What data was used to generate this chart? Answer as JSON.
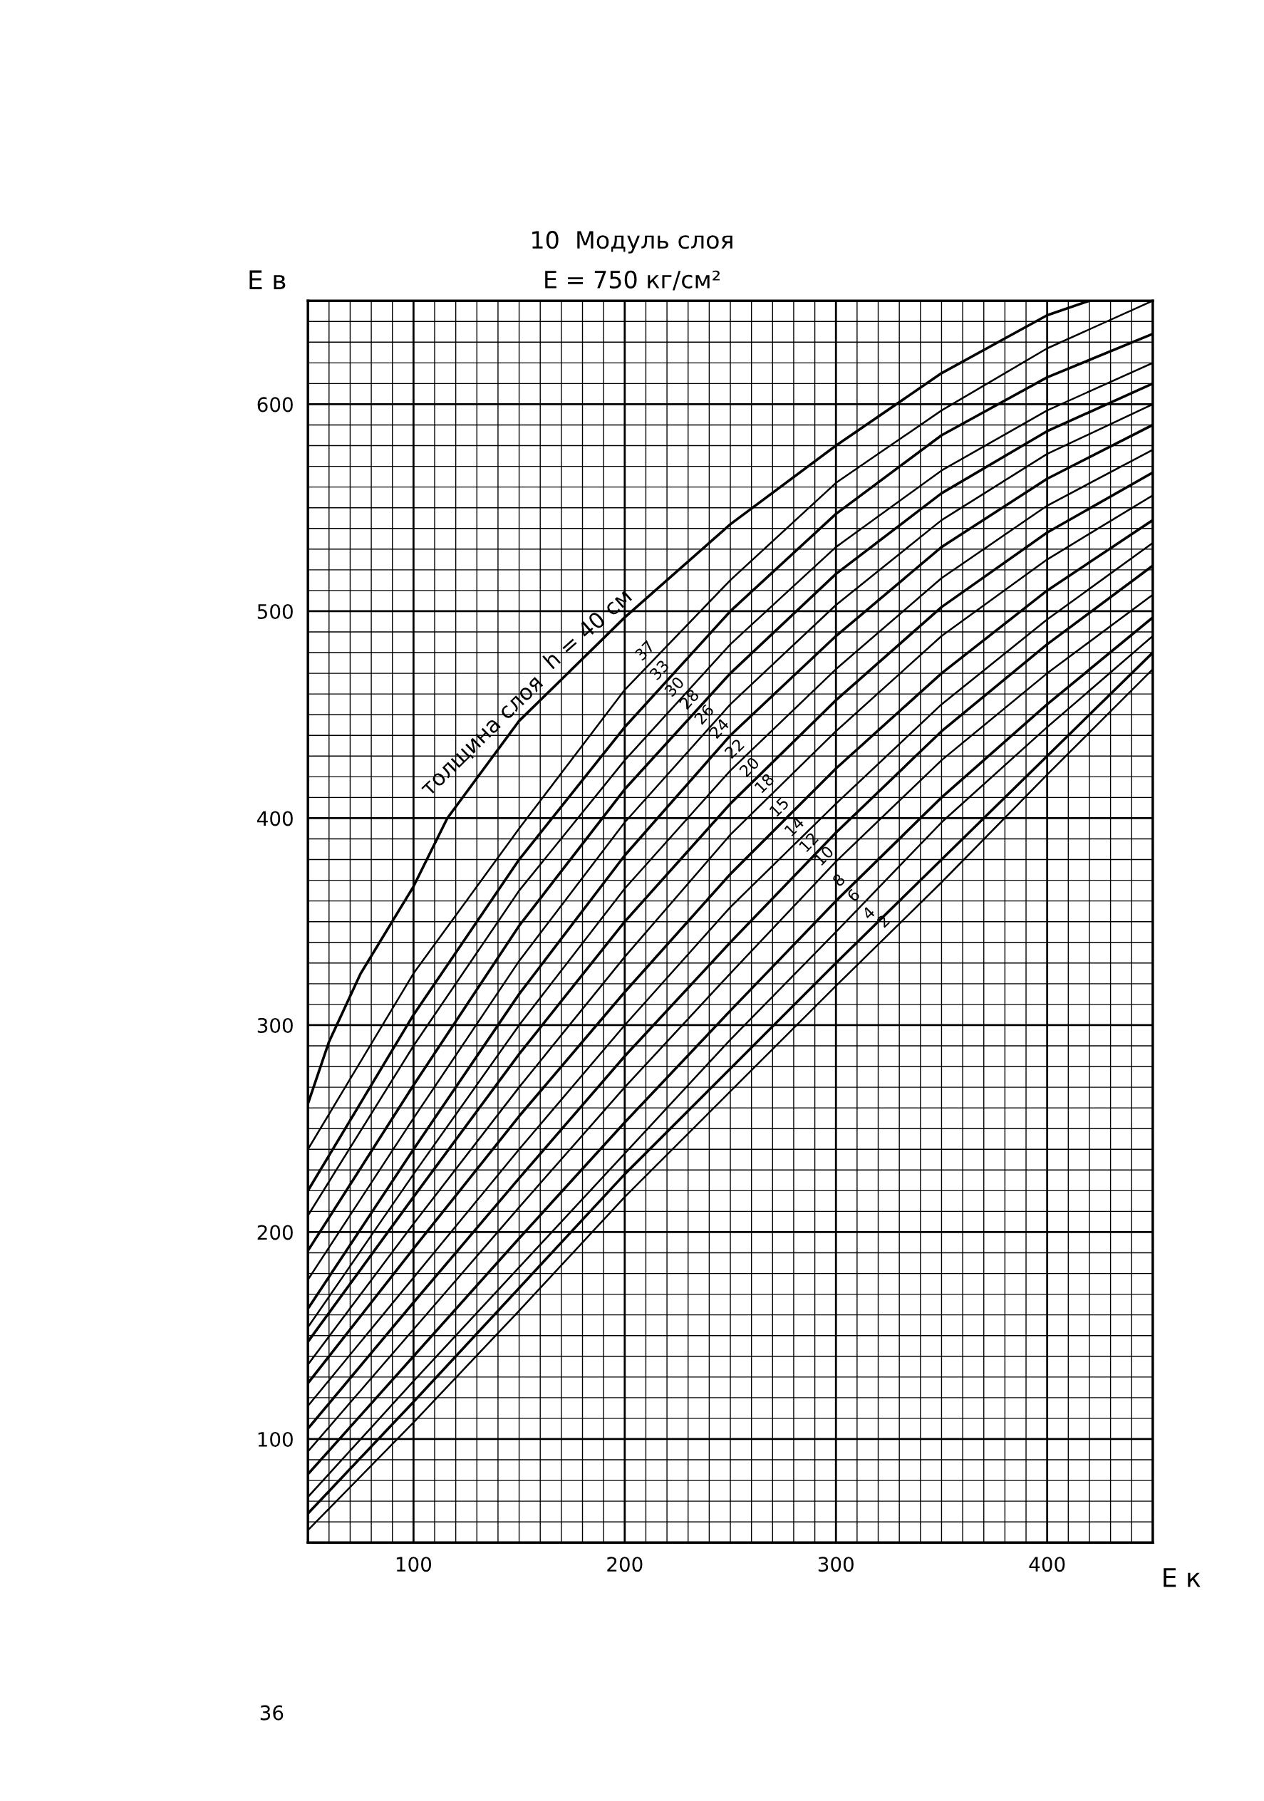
{
  "chart_data": {
    "type": "line",
    "title": "10  Модуль слоя",
    "subtitle": "E = 750 кг/см²",
    "xlabel": "E к",
    "ylabel": "E в",
    "x": [
      50,
      100,
      150,
      200,
      250,
      300,
      350,
      400,
      450
    ],
    "series": [
      {
        "name": "h = 40 см",
        "color": "#000000",
        "x": [
          50,
          60,
          75,
          100,
          116,
          150,
          200,
          250,
          300,
          350,
          400,
          420
        ],
        "values": [
          262,
          292,
          325,
          367,
          400,
          447,
          497,
          542,
          580,
          615,
          643,
          650
        ]
      },
      {
        "name": "37",
        "color": "#000000",
        "values": [
          240,
          325,
          395,
          462,
          515,
          562,
          597,
          627,
          650
        ]
      },
      {
        "name": "33",
        "color": "#000000",
        "values": [
          220,
          305,
          380,
          444,
          500,
          547,
          585,
          613,
          634
        ]
      },
      {
        "name": "30",
        "color": "#000000",
        "values": [
          208,
          290,
          365,
          428,
          484,
          531,
          568,
          597,
          620
        ]
      },
      {
        "name": "28",
        "color": "#000000",
        "values": [
          191,
          271,
          348,
          414,
          470,
          518,
          557,
          587,
          610
        ]
      },
      {
        "name": "26",
        "color": "#000000",
        "values": [
          177,
          255,
          331,
          398,
          455,
          503,
          544,
          576,
          600
        ]
      },
      {
        "name": "24",
        "color": "#000000",
        "values": [
          163,
          240,
          315,
          382,
          440,
          488,
          531,
          564,
          590
        ]
      },
      {
        "name": "22",
        "color": "#000000",
        "values": [
          154,
          228,
          300,
          366,
          423,
          472,
          516,
          551,
          578
        ]
      },
      {
        "name": "20",
        "color": "#000000",
        "values": [
          147,
          217,
          286,
          350,
          407,
          457,
          502,
          538,
          567
        ]
      },
      {
        "name": "18",
        "color": "#000000",
        "values": [
          136,
          204,
          270,
          333,
          392,
          442,
          488,
          525,
          556
        ]
      },
      {
        "name": "15",
        "color": "#000000",
        "values": [
          127,
          192,
          256,
          316,
          373,
          424,
          470,
          510,
          544
        ]
      },
      {
        "name": "14",
        "color": "#000000",
        "values": [
          116,
          178,
          240,
          300,
          357,
          407,
          455,
          496,
          533
        ]
      },
      {
        "name": "12",
        "color": "#000000",
        "values": [
          105,
          166,
          226,
          285,
          340,
          393,
          442,
          484,
          522
        ]
      },
      {
        "name": "10",
        "color": "#000000",
        "values": [
          94,
          153,
          212,
          270,
          325,
          379,
          428,
          470,
          508
        ]
      },
      {
        "name": "8",
        "color": "#000000",
        "values": [
          83,
          140,
          197,
          253,
          307,
          360,
          410,
          455,
          497
        ]
      },
      {
        "name": "6",
        "color": "#000000",
        "values": [
          72,
          128,
          183,
          238,
          293,
          345,
          398,
          444,
          488
        ]
      },
      {
        "name": "4",
        "color": "#000000",
        "values": [
          64,
          118,
          173,
          228,
          279,
          330,
          380,
          430,
          480
        ]
      },
      {
        "name": "2",
        "color": "#000000",
        "values": [
          56,
          108,
          162,
          217,
          268,
          319,
          369,
          421,
          472
        ]
      }
    ],
    "xlim": [
      50,
      450
    ],
    "ylim": [
      50,
      650
    ],
    "xticks": [
      100,
      200,
      300,
      400
    ],
    "yticks": [
      100,
      200,
      300,
      400,
      500,
      600
    ],
    "grid": true,
    "line_style": "solid",
    "marker": "none",
    "legend": false,
    "annotations": [
      "толщина слоя",
      "36"
    ]
  }
}
